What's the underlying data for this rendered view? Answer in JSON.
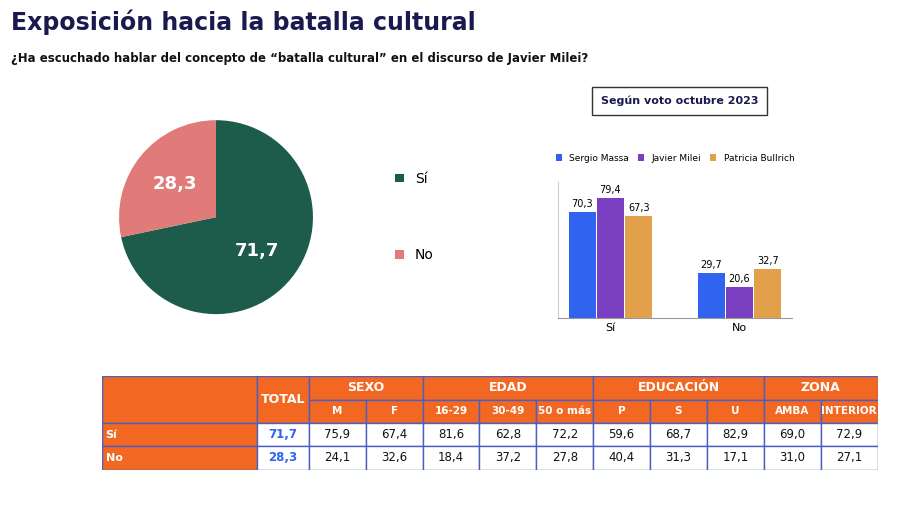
{
  "header": {
    "title": "Exposición hacia la batalla cultural",
    "question": "¿Ha escuchado hablar del concepto de “batalla cultural” en el discurso de Javier Milei?"
  },
  "chart_data": [
    {
      "type": "pie",
      "categories": [
        "Sí",
        "No"
      ],
      "values": [
        71.7,
        28.3
      ],
      "value_labels": [
        "71,7",
        "28,3"
      ],
      "colors": [
        "#1d5c4b",
        "#e07b7a"
      ],
      "data_labels": true,
      "legend": "right"
    },
    {
      "type": "bar",
      "title": "Según voto octubre 2023",
      "categories": [
        "Sí",
        "No"
      ],
      "series": [
        {
          "name": "Sergio Massa",
          "color": "#2f63f0",
          "values": [
            70.3,
            29.7
          ],
          "value_labels": [
            "70,3",
            "29,7"
          ]
        },
        {
          "name": "Javier Milei",
          "color": "#7a3fc0",
          "values": [
            79.4,
            20.6
          ],
          "value_labels": [
            "79,4",
            "20,6"
          ]
        },
        {
          "name": "Patricia Bullrich",
          "color": "#e3a04b",
          "values": [
            67.3,
            32.7
          ],
          "value_labels": [
            "67,3",
            "32,7"
          ]
        }
      ],
      "ylim": [
        0,
        90
      ],
      "yticks": [],
      "tick_labels": "x",
      "data_labels": true,
      "legend": "lower center"
    }
  ],
  "table": {
    "total_header": "TOTAL",
    "groups": [
      {
        "name": "SEXO",
        "columns": [
          "M",
          "F"
        ]
      },
      {
        "name": "EDAD",
        "columns": [
          "16-29",
          "30-49",
          "50 o más"
        ]
      },
      {
        "name": "EDUCACIÓN",
        "columns": [
          "P",
          "S",
          "U"
        ]
      },
      {
        "name": "ZONA",
        "columns": [
          "AMBA",
          "INTERIOR"
        ]
      }
    ],
    "rows": [
      {
        "label": "Sí",
        "values": [
          "71,7",
          "75,9",
          "67,4",
          "81,6",
          "62,8",
          "72,2",
          "59,6",
          "68,7",
          "82,9",
          "69,0",
          "72,9"
        ]
      },
      {
        "label": "No",
        "values": [
          "28,3",
          "24,1",
          "32,6",
          "18,4",
          "37,2",
          "27,8",
          "40,4",
          "31,3",
          "17,1",
          "31,0",
          "27,1"
        ]
      }
    ]
  }
}
